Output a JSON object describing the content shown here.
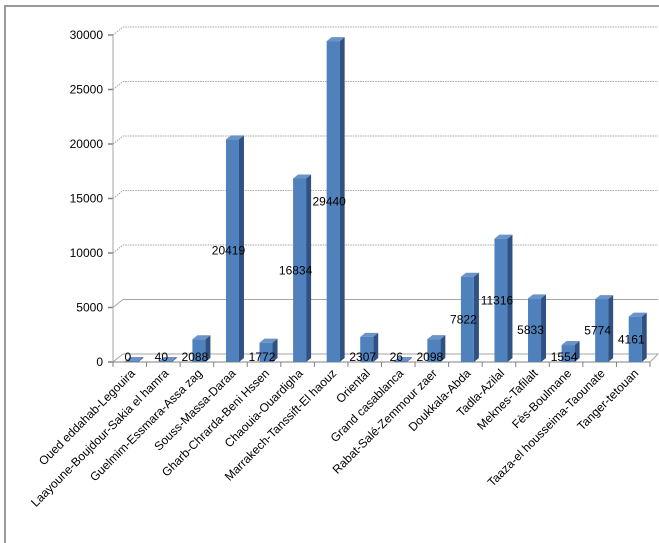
{
  "chart_data": {
    "type": "bar",
    "style": "3d-column",
    "title": "",
    "xlabel": "",
    "ylabel": "",
    "ylim": [
      0,
      30000
    ],
    "yticks": [
      0,
      5000,
      10000,
      15000,
      20000,
      25000,
      30000
    ],
    "grid": true,
    "legend": "none",
    "bar_color": "#4f81bd",
    "categories": [
      "Oued eddahab-Legouira",
      "Laayoune-Boujdour-Sakia el hamra",
      "Guelmim-Essmara-Assa  zag",
      "Souss-Massa-Daraa",
      "Gharb-Chrarda-Beni Hssen",
      "Chaouia-Ouardigha",
      "Marrakech-Tanssift-El haouz",
      "Oriental",
      "Grand casablanca",
      "Rabat-Salé-Zemmour  zaer",
      "Doukkala-Abda",
      "Tadla-Azilal",
      "Meknes-Tafilalt",
      "Fès-Boulmane",
      "Taaza-el housseima-Taounate",
      "Tanger-tetouan"
    ],
    "values": [
      0,
      40,
      2088,
      20419,
      1772,
      16834,
      29440,
      2307,
      26,
      2098,
      7822,
      11316,
      5833,
      1554,
      5774,
      4161
    ],
    "data_labels": [
      "0",
      "40",
      "2088",
      "20419",
      "1772",
      "16834",
      "29440",
      "2307",
      "26",
      "2098",
      "7822",
      "11316",
      "5833",
      "1554",
      "5774",
      "4161"
    ]
  }
}
